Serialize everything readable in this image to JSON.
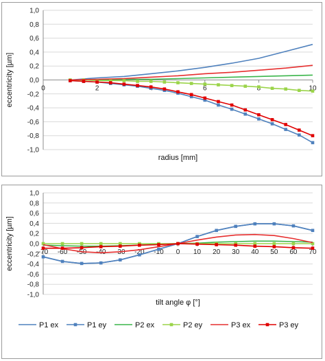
{
  "chart_data": [
    {
      "type": "line",
      "xlabel": "radius [mm]",
      "ylabel": "eccentricity [µm]",
      "xlim": [
        0,
        10
      ],
      "ylim": [
        -1.0,
        1.0
      ],
      "x_ticks": [
        "0",
        "2",
        "4",
        "6",
        "8",
        "10"
      ],
      "y_ticks": [
        "1,0",
        "0,8",
        "0,6",
        "0,4",
        "0,2",
        "0,0",
        "-0,2",
        "-0,4",
        "-0,6",
        "-0,8",
        "-1,0"
      ],
      "grid": "horizontal",
      "legend_position": "bottom",
      "series": [
        {
          "name": "P1 ex",
          "color": "#4f81bd",
          "marker": "none",
          "x": [
            1,
            2,
            3,
            4,
            5,
            6,
            7,
            8,
            9,
            10
          ],
          "y": [
            0.0,
            0.03,
            0.05,
            0.09,
            0.13,
            0.18,
            0.24,
            0.31,
            0.41,
            0.51
          ]
        },
        {
          "name": "P1 ey",
          "color": "#4f81bd",
          "marker": "square",
          "x": [
            1,
            1.5,
            2,
            2.5,
            3,
            3.5,
            4,
            4.5,
            5,
            5.5,
            6,
            6.5,
            7,
            7.5,
            8,
            8.5,
            9,
            9.5,
            10
          ],
          "y": [
            -0.01,
            -0.02,
            -0.03,
            -0.05,
            -0.07,
            -0.09,
            -0.12,
            -0.15,
            -0.19,
            -0.24,
            -0.29,
            -0.36,
            -0.42,
            -0.49,
            -0.56,
            -0.63,
            -0.71,
            -0.79,
            -0.9
          ]
        },
        {
          "name": "P2 ex",
          "color": "#3ab54a",
          "marker": "none",
          "x": [
            1,
            2,
            3,
            4,
            5,
            6,
            7,
            8,
            9,
            10
          ],
          "y": [
            0.0,
            0.0,
            0.01,
            0.01,
            0.02,
            0.03,
            0.04,
            0.05,
            0.06,
            0.07
          ]
        },
        {
          "name": "P2 ey",
          "color": "#9bd44a",
          "marker": "square",
          "x": [
            1,
            1.5,
            2,
            2.5,
            3,
            3.5,
            4,
            4.5,
            5,
            5.5,
            6,
            6.5,
            7,
            7.5,
            8,
            8.5,
            9,
            9.5,
            10
          ],
          "y": [
            0.0,
            0.0,
            -0.01,
            -0.01,
            -0.01,
            -0.02,
            -0.02,
            -0.03,
            -0.04,
            -0.05,
            -0.06,
            -0.07,
            -0.08,
            -0.09,
            -0.1,
            -0.12,
            -0.13,
            -0.15,
            -0.16
          ]
        },
        {
          "name": "P3 ex",
          "color": "#e62e2e",
          "marker": "none",
          "x": [
            1,
            2,
            3,
            4,
            5,
            6,
            7,
            8,
            9,
            10
          ],
          "y": [
            0.0,
            0.01,
            0.02,
            0.04,
            0.06,
            0.09,
            0.11,
            0.14,
            0.17,
            0.21
          ]
        },
        {
          "name": "P3 ey",
          "color": "#e00000",
          "marker": "square",
          "x": [
            1,
            1.5,
            2,
            2.5,
            3,
            3.5,
            4,
            4.5,
            5,
            5.5,
            6,
            6.5,
            7,
            7.5,
            8,
            8.5,
            9,
            9.5,
            10
          ],
          "y": [
            -0.01,
            -0.02,
            -0.03,
            -0.04,
            -0.06,
            -0.08,
            -0.1,
            -0.13,
            -0.17,
            -0.21,
            -0.26,
            -0.31,
            -0.36,
            -0.43,
            -0.5,
            -0.57,
            -0.64,
            -0.72,
            -0.8
          ]
        }
      ]
    },
    {
      "type": "line",
      "xlabel": "tilt angle φ [°]",
      "ylabel": "eccentricity [µm]",
      "xlim": [
        -70,
        70
      ],
      "ylim": [
        -1.0,
        1.0
      ],
      "x_ticks": [
        "-70",
        "-60",
        "-50",
        "-40",
        "-30",
        "-20",
        "-10",
        "0",
        "10",
        "20",
        "30",
        "40",
        "50",
        "60",
        "70"
      ],
      "y_ticks": [
        "1,0",
        "0,8",
        "0,6",
        "0,4",
        "0,2",
        "0,0",
        "-0,2",
        "-0,4",
        "-0,6",
        "-0,8",
        "-1,0"
      ],
      "grid": "horizontal",
      "legend_position": "bottom",
      "series": [
        {
          "name": "P1 ex",
          "color": "#4f81bd",
          "marker": "none",
          "x": [
            -70,
            -60,
            -50,
            -40,
            -30,
            -20,
            -10,
            0,
            10,
            20,
            30,
            40,
            50,
            60,
            70
          ],
          "y": [
            -0.26,
            -0.35,
            -0.39,
            -0.38,
            -0.32,
            -0.22,
            -0.11,
            0.0,
            0.14,
            0.26,
            0.34,
            0.39,
            0.39,
            0.35,
            0.26
          ]
        },
        {
          "name": "P1 ey",
          "color": "#4f81bd",
          "marker": "square",
          "x": [
            -70,
            -60,
            -50,
            -40,
            -30,
            -20,
            -10,
            0,
            10,
            20,
            30,
            40,
            50,
            60,
            70
          ],
          "y": [
            -0.26,
            -0.35,
            -0.39,
            -0.38,
            -0.32,
            -0.22,
            -0.11,
            0.0,
            0.14,
            0.26,
            0.34,
            0.39,
            0.39,
            0.35,
            0.26
          ]
        },
        {
          "name": "P2 ex",
          "color": "#3ab54a",
          "marker": "none",
          "x": [
            -70,
            -60,
            -50,
            -40,
            -30,
            -20,
            -10,
            0,
            10,
            20,
            30,
            40,
            50,
            60,
            70
          ],
          "y": [
            -0.03,
            -0.04,
            -0.05,
            -0.05,
            -0.04,
            -0.03,
            -0.01,
            0.0,
            0.01,
            0.03,
            0.04,
            0.05,
            0.05,
            0.04,
            0.03
          ]
        },
        {
          "name": "P2 ey",
          "color": "#9bd44a",
          "marker": "square",
          "x": [
            -70,
            -60,
            -50,
            -40,
            -30,
            -20,
            -10,
            0,
            10,
            20,
            30,
            40,
            50,
            60,
            70
          ],
          "y": [
            0.0,
            0.0,
            0.0,
            0.0,
            0.0,
            0.0,
            0.0,
            0.0,
            0.0,
            0.0,
            0.0,
            0.0,
            0.0,
            0.0,
            0.0
          ]
        },
        {
          "name": "P3 ex",
          "color": "#e62e2e",
          "marker": "none",
          "x": [
            -70,
            -60,
            -50,
            -40,
            -30,
            -20,
            -10,
            0,
            10,
            20,
            30,
            40,
            50,
            60,
            70
          ],
          "y": [
            -0.02,
            -0.1,
            -0.16,
            -0.18,
            -0.16,
            -0.12,
            -0.06,
            0.0,
            0.07,
            0.13,
            0.17,
            0.18,
            0.16,
            0.1,
            0.02
          ]
        },
        {
          "name": "P3 ey",
          "color": "#e00000",
          "marker": "square",
          "x": [
            -70,
            -60,
            -50,
            -40,
            -30,
            -20,
            -10,
            0,
            10,
            20,
            30,
            40,
            50,
            60,
            70
          ],
          "y": [
            -0.09,
            -0.09,
            -0.08,
            -0.06,
            -0.05,
            -0.03,
            -0.02,
            0.0,
            -0.01,
            -0.02,
            -0.03,
            -0.05,
            -0.06,
            -0.08,
            -0.09
          ]
        }
      ]
    }
  ]
}
